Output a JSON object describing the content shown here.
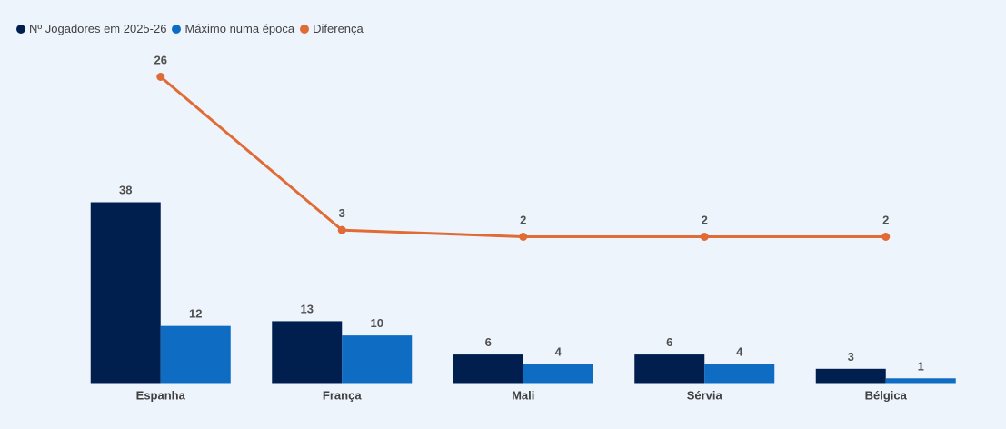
{
  "chart_data": {
    "type": "bar",
    "categories": [
      "Espanha",
      "França",
      "Mali",
      "Sérvia",
      "Bélgica"
    ],
    "series": [
      {
        "name": "Nº Jogadores em 2025-26",
        "kind": "bar",
        "color": "#001f4f",
        "values": [
          38,
          13,
          6,
          6,
          3
        ]
      },
      {
        "name": "Máximo numa época",
        "kind": "bar",
        "color": "#0f6cc3",
        "values": [
          12,
          10,
          4,
          4,
          1
        ]
      },
      {
        "name": "Diferença",
        "kind": "line",
        "color": "#e06b35",
        "values": [
          26,
          3,
          2,
          2,
          2
        ]
      }
    ],
    "title": "",
    "xlabel": "",
    "ylabel": "",
    "legend_position": "top-left",
    "grid": false
  }
}
